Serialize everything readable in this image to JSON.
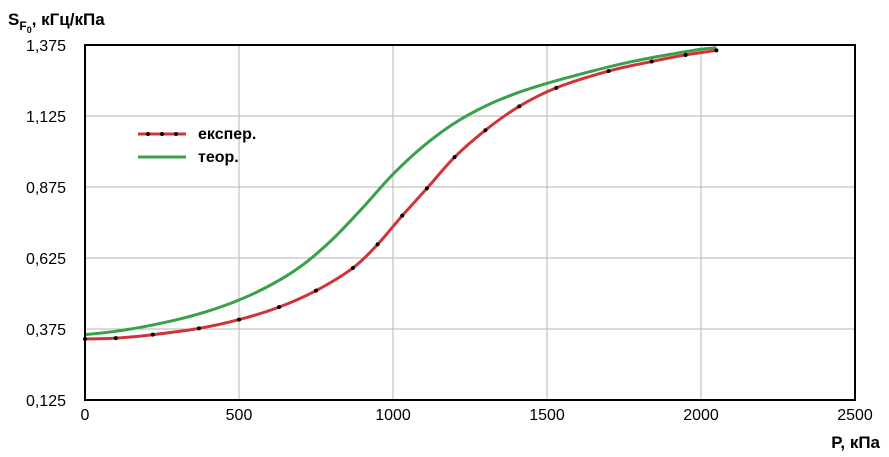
{
  "chart_data": {
    "type": "line",
    "ylabel": "S",
    "ylabel_sub": "F",
    "ylabel_subsub": "0",
    "ylabel_units": ", кГц/кПа",
    "xlabel": "P, кПа",
    "xlim": [
      0,
      2500
    ],
    "ylim": [
      0.125,
      1.375
    ],
    "x_ticks": [
      0,
      500,
      1000,
      1500,
      2000,
      2500
    ],
    "x_tick_labels": [
      "0",
      "500",
      "1000",
      "1500",
      "2000",
      "2500"
    ],
    "y_ticks": [
      0.125,
      0.375,
      0.625,
      0.875,
      1.125,
      1.375
    ],
    "y_tick_labels": [
      "0,125",
      "0,375",
      "0,625",
      "0,875",
      "1,125",
      "1,375"
    ],
    "grid": true,
    "legend_position": "top-left",
    "series": [
      {
        "name": "експер.",
        "color": "#d0343a",
        "markers": true,
        "x": [
          0,
          100,
          220,
          370,
          500,
          630,
          750,
          870,
          950,
          1030,
          1110,
          1200,
          1300,
          1410,
          1530,
          1700,
          1840,
          1950,
          2050
        ],
        "y": [
          0.34,
          0.343,
          0.355,
          0.377,
          0.408,
          0.452,
          0.51,
          0.59,
          0.673,
          0.774,
          0.87,
          0.98,
          1.075,
          1.159,
          1.224,
          1.283,
          1.317,
          1.34,
          1.356
        ]
      },
      {
        "name": "теор.",
        "color": "#3aa04a",
        "markers": false,
        "x": [
          0,
          100,
          200,
          300,
          400,
          500,
          600,
          700,
          800,
          900,
          1000,
          1100,
          1200,
          1300,
          1400,
          1500,
          1600,
          1700,
          1800,
          1900,
          2000,
          2050
        ],
        "y": [
          0.355,
          0.367,
          0.385,
          0.408,
          0.438,
          0.477,
          0.528,
          0.595,
          0.687,
          0.8,
          0.92,
          1.02,
          1.1,
          1.16,
          1.205,
          1.24,
          1.27,
          1.298,
          1.322,
          1.342,
          1.36,
          1.365
        ]
      }
    ]
  }
}
